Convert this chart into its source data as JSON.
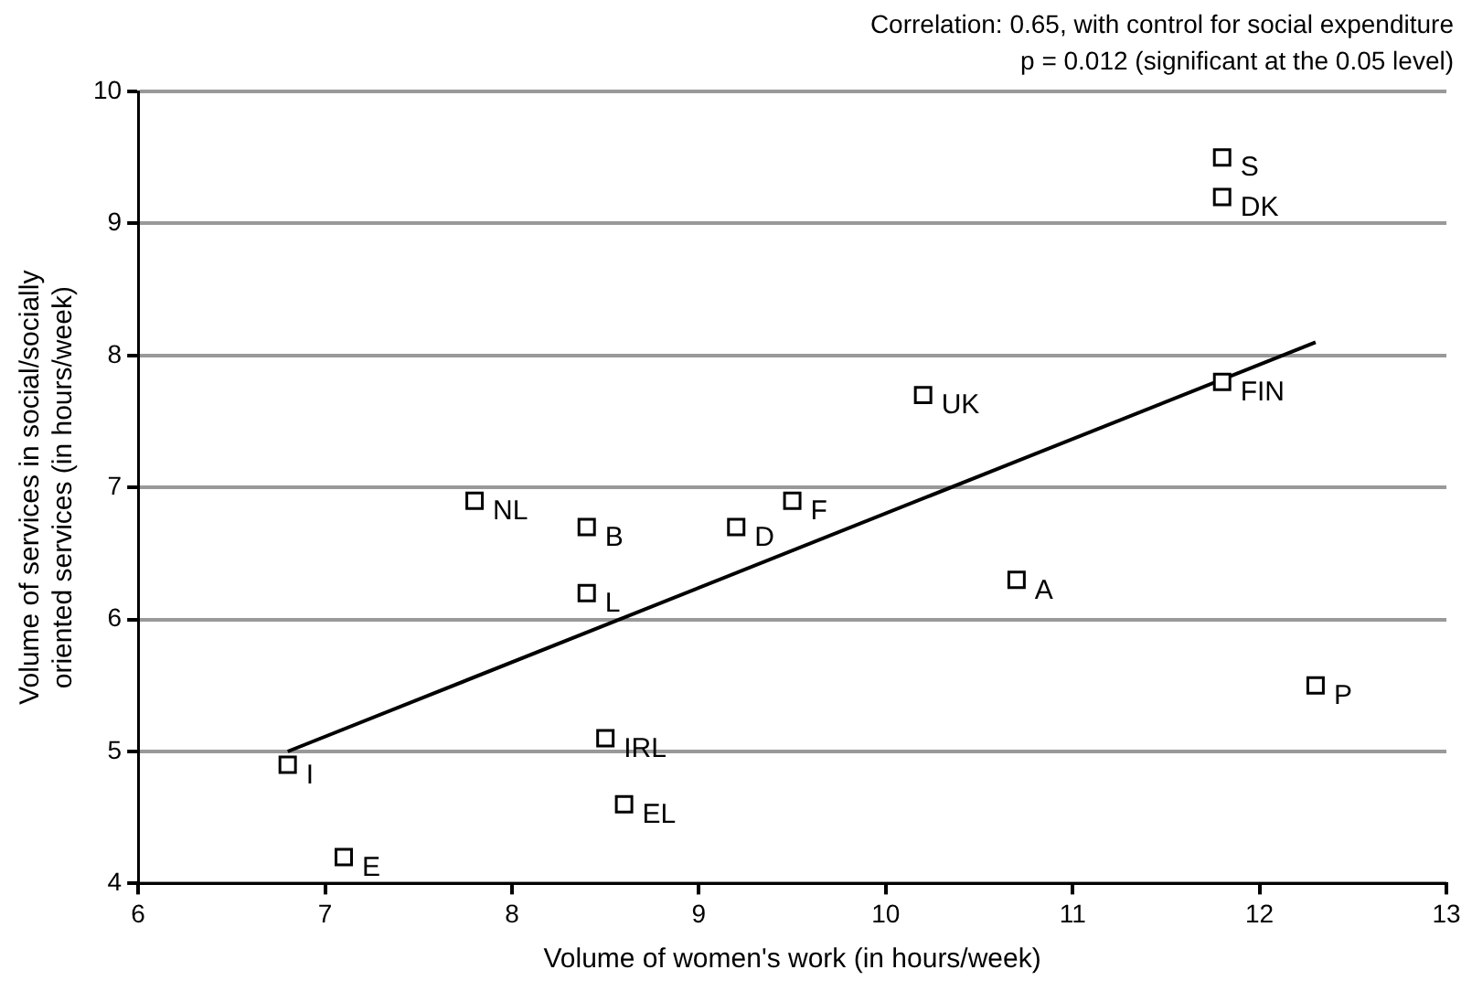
{
  "chart_data": {
    "type": "scatter",
    "xlabel": "Volume of women's work (in hours/week)",
    "ylabel": "Volume of services in social/socially oriented services (in hours/week)",
    "annotations": [
      "Correlation: 0.65, with control for social expenditure",
      "p = 0.012 (significant at the 0.05 level)",
      {
        "text": "S",
        "x": 11.8,
        "y": 9.5
      },
      {
        "text": "DK",
        "x": 11.8,
        "y": 9.2
      },
      {
        "text": "FIN",
        "x": 11.8,
        "y": 7.8
      },
      {
        "text": "UK",
        "x": 10.2,
        "y": 7.7
      },
      {
        "text": "F",
        "x": 9.5,
        "y": 6.9
      },
      {
        "text": "D",
        "x": 9.2,
        "y": 6.7
      },
      {
        "text": "B",
        "x": 8.4,
        "y": 6.7
      },
      {
        "text": "NL",
        "x": 7.8,
        "y": 6.9
      },
      {
        "text": "L",
        "x": 8.4,
        "y": 6.2
      },
      {
        "text": "A",
        "x": 10.7,
        "y": 6.3
      },
      {
        "text": "P",
        "x": 12.3,
        "y": 5.5
      },
      {
        "text": "IRL",
        "x": 8.5,
        "y": 5.1
      },
      {
        "text": "EL",
        "x": 8.6,
        "y": 4.6
      },
      {
        "text": "I",
        "x": 6.8,
        "y": 4.9
      },
      {
        "text": "E",
        "x": 7.1,
        "y": 4.2
      }
    ],
    "series": [
      {
        "type": "scatter",
        "color": "#000000",
        "x": [
          11.8,
          11.8,
          11.8,
          10.2,
          9.5,
          9.2,
          8.4,
          7.8,
          8.4,
          10.7,
          12.3,
          8.5,
          8.6,
          6.8,
          7.1
        ],
        "values": [
          9.5,
          9.2,
          7.8,
          7.7,
          6.9,
          6.7,
          6.7,
          6.9,
          6.2,
          6.3,
          5.5,
          5.1,
          4.6,
          4.9,
          4.2
        ]
      },
      {
        "type": "line",
        "color": "#000000",
        "marker": "none",
        "x": [
          6.8,
          12.3
        ],
        "values": [
          5.0,
          8.1
        ]
      }
    ],
    "xlim": [
      6,
      13
    ],
    "xticks": [
      6,
      7,
      8,
      9,
      10,
      11,
      12,
      13
    ],
    "ylim": [
      4,
      10
    ],
    "yticks": [
      4,
      5,
      6,
      7,
      8,
      9,
      10
    ],
    "grid": "y",
    "legend": false,
    "marker": "square"
  }
}
